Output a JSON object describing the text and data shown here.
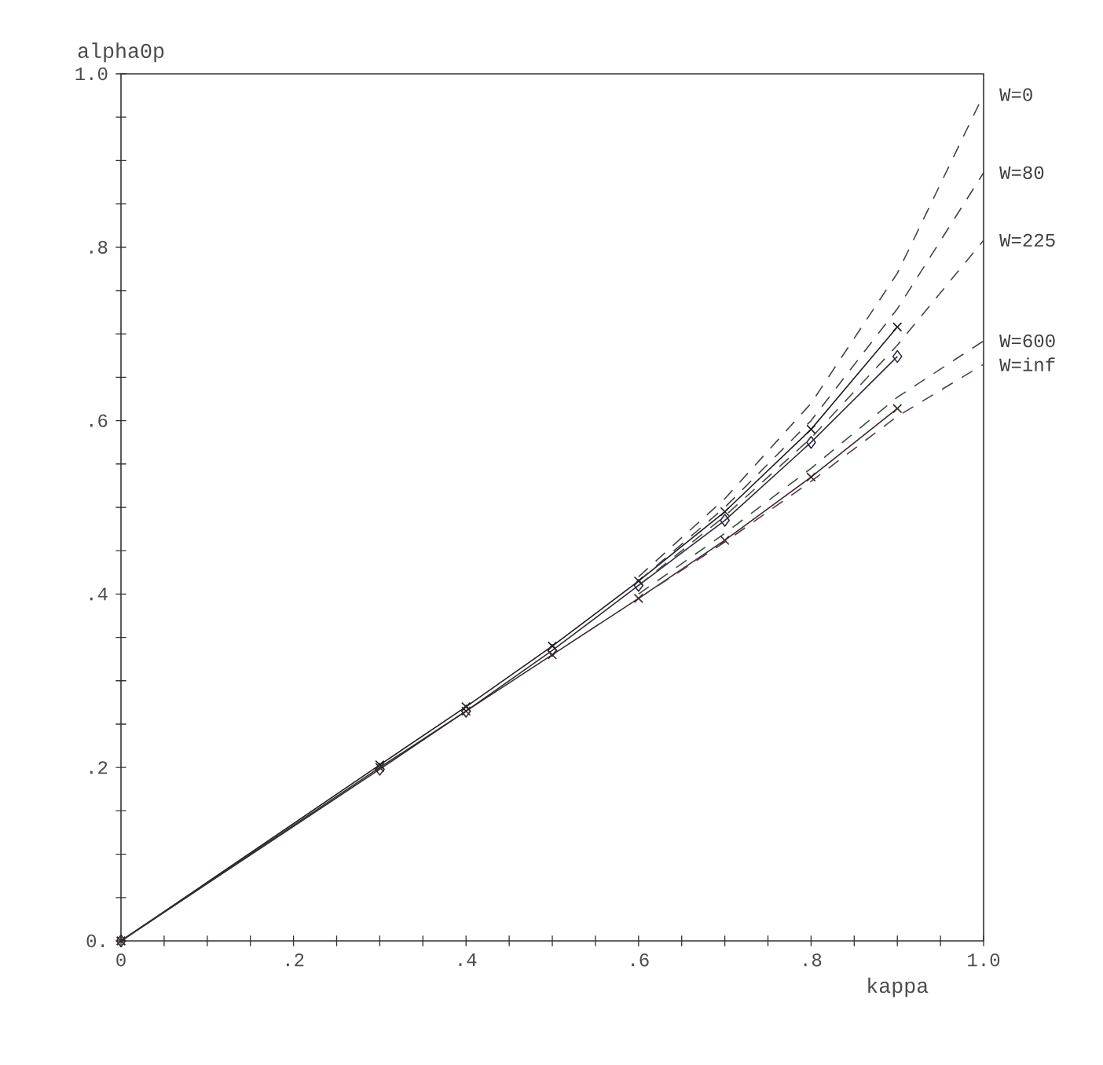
{
  "chart_data": {
    "type": "line",
    "xlabel": "kappa",
    "ylabel": "alpha0p",
    "xlim": [
      0,
      1.0
    ],
    "ylim": [
      0,
      1.0
    ],
    "xticks": [
      {
        "value": 0,
        "label": "0"
      },
      {
        "value": 0.05,
        "label": null
      },
      {
        "value": 0.1,
        "label": null
      },
      {
        "value": 0.15,
        "label": null
      },
      {
        "value": 0.2,
        "label": ".2"
      },
      {
        "value": 0.25,
        "label": null
      },
      {
        "value": 0.3,
        "label": null
      },
      {
        "value": 0.35,
        "label": null
      },
      {
        "value": 0.4,
        "label": ".4"
      },
      {
        "value": 0.45,
        "label": null
      },
      {
        "value": 0.5,
        "label": null
      },
      {
        "value": 0.55,
        "label": null
      },
      {
        "value": 0.6,
        "label": ".6"
      },
      {
        "value": 0.65,
        "label": null
      },
      {
        "value": 0.7,
        "label": null
      },
      {
        "value": 0.75,
        "label": null
      },
      {
        "value": 0.8,
        "label": ".8"
      },
      {
        "value": 0.85,
        "label": null
      },
      {
        "value": 0.9,
        "label": null
      },
      {
        "value": 0.95,
        "label": null
      },
      {
        "value": 1.0,
        "label": "1.0"
      }
    ],
    "yticks": [
      {
        "value": 0,
        "label": "0."
      },
      {
        "value": 0.05,
        "label": null
      },
      {
        "value": 0.1,
        "label": null
      },
      {
        "value": 0.15,
        "label": null
      },
      {
        "value": 0.2,
        "label": ".2"
      },
      {
        "value": 0.25,
        "label": null
      },
      {
        "value": 0.3,
        "label": null
      },
      {
        "value": 0.35,
        "label": null
      },
      {
        "value": 0.4,
        "label": ".4"
      },
      {
        "value": 0.45,
        "label": null
      },
      {
        "value": 0.5,
        "label": null
      },
      {
        "value": 0.55,
        "label": null
      },
      {
        "value": 0.6,
        "label": ".6"
      },
      {
        "value": 0.65,
        "label": null
      },
      {
        "value": 0.7,
        "label": null
      },
      {
        "value": 0.75,
        "label": null
      },
      {
        "value": 0.8,
        "label": ".8"
      },
      {
        "value": 0.85,
        "label": null
      },
      {
        "value": 0.9,
        "label": null
      },
      {
        "value": 0.95,
        "label": null
      },
      {
        "value": 1.0,
        "label": "1.0"
      }
    ],
    "grid": false,
    "legend": false,
    "series": [
      {
        "color": "#1e1e1e",
        "line_style": "solid",
        "marker": "cross",
        "x": [
          0,
          0.3,
          0.4,
          0.5,
          0.6,
          0.7,
          0.8,
          0.9
        ],
        "values": [
          0,
          0.203,
          0.27,
          0.34,
          0.415,
          0.495,
          0.59,
          0.708
        ]
      },
      {
        "color": "#2a2a3a",
        "line_style": "solid",
        "marker": "diamond",
        "x": [
          0,
          0.3,
          0.4,
          0.5,
          0.6,
          0.7,
          0.8,
          0.9
        ],
        "values": [
          0,
          0.198,
          0.265,
          0.335,
          0.41,
          0.485,
          0.575,
          0.674
        ]
      },
      {
        "color": "#3a2a2a",
        "line_style": "solid",
        "marker": "cross",
        "x": [
          0,
          0.3,
          0.4,
          0.5,
          0.6,
          0.7,
          0.8,
          0.9
        ],
        "values": [
          0,
          0.2,
          0.265,
          0.33,
          0.395,
          0.462,
          0.535,
          0.614
        ]
      },
      {
        "name": "W=0",
        "color": "#444444",
        "line_style": "dashed",
        "marker": "none",
        "x": [
          0.6,
          0.7,
          0.8,
          0.9,
          1.0
        ],
        "values": [
          0.42,
          0.51,
          0.62,
          0.77,
          0.976
        ]
      },
      {
        "name": "W=80",
        "color": "#3c4450",
        "line_style": "dashed",
        "marker": "none",
        "x": [
          0.6,
          0.7,
          0.8,
          0.9,
          1.0
        ],
        "values": [
          0.415,
          0.5,
          0.6,
          0.729,
          0.886
        ]
      },
      {
        "name": "W=225",
        "color": "#50443c",
        "line_style": "dashed",
        "marker": "none",
        "x": [
          0.6,
          0.7,
          0.8,
          0.9,
          1.0
        ],
        "values": [
          0.41,
          0.49,
          0.58,
          0.687,
          0.808
        ]
      },
      {
        "name": "W=600",
        "color": "#3c503c",
        "line_style": "dashed",
        "marker": "none",
        "x": [
          0.6,
          0.7,
          0.8,
          0.9,
          1.0
        ],
        "values": [
          0.4,
          0.47,
          0.545,
          0.627,
          0.692
        ]
      },
      {
        "name": "W=inf",
        "color": "#553c55",
        "line_style": "dashed",
        "marker": "none",
        "x": [
          0.6,
          0.7,
          0.8,
          0.9,
          1.0
        ],
        "values": [
          0.395,
          0.46,
          0.53,
          0.605,
          0.665
        ]
      }
    ]
  }
}
